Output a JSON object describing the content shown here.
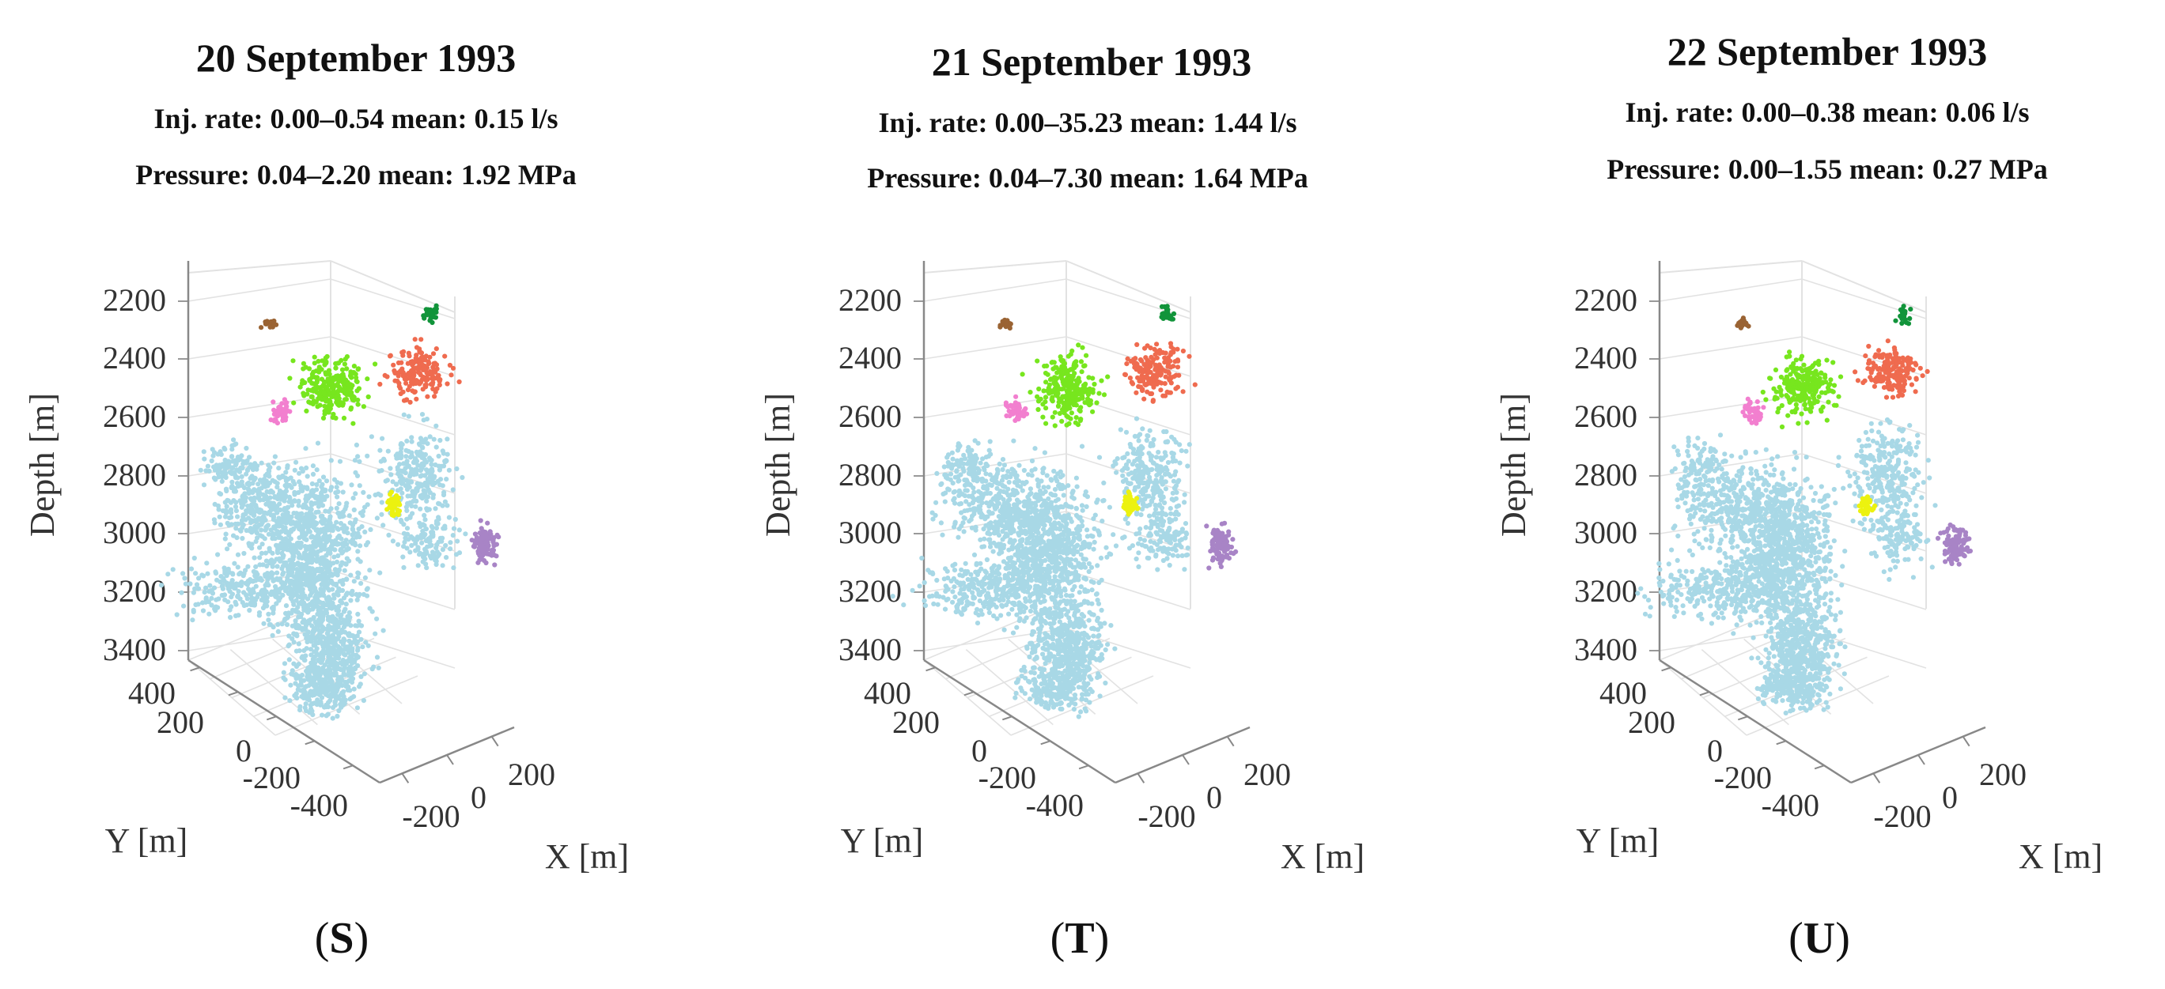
{
  "chart_data": [
    {
      "type": "scatter",
      "panel_label": "S",
      "title": "20 September 1993",
      "inj_line": "Inj. rate:  0.00–0.54  mean: 0.15 l/s",
      "pressure_line": "Pressure:  0.04–2.20  mean: 1.92 MPa",
      "zlabel": "Depth [m]",
      "ylabel": "Y [m]",
      "xlabel": "X [m]",
      "depth_ticks": [
        "2200",
        "2400",
        "2600",
        "2800",
        "3000",
        "3200",
        "3400"
      ],
      "y_ticks": [
        "400",
        "200",
        "0",
        "-200",
        "-400"
      ],
      "x_ticks": [
        "-200",
        "0",
        "200"
      ],
      "zlim": [
        2100,
        3450
      ],
      "seed": 11
    },
    {
      "type": "scatter",
      "panel_label": "T",
      "title": "21 September 1993",
      "inj_line": "Inj. rate:  0.00–35.23  mean: 1.44 l/s",
      "pressure_line": "Pressure:  0.04–7.30  mean: 1.64 MPa",
      "zlabel": "Depth [m]",
      "ylabel": "Y [m]",
      "xlabel": "X [m]",
      "depth_ticks": [
        "2200",
        "2400",
        "2600",
        "2800",
        "3000",
        "3200",
        "3400"
      ],
      "y_ticks": [
        "400",
        "200",
        "0",
        "-200",
        "-400"
      ],
      "x_ticks": [
        "-200",
        "0",
        "200"
      ],
      "zlim": [
        2100,
        3450
      ],
      "seed": 23
    },
    {
      "type": "scatter",
      "panel_label": "U",
      "title": "22 September 1993",
      "inj_line": "Inj. rate:  0.00–0.38  mean: 0.06 l/s",
      "pressure_line": "Pressure:  0.00–1.55  mean: 0.27 MPa",
      "zlabel": "Depth [m]",
      "ylabel": "Y [m]",
      "xlabel": "X [m]",
      "depth_ticks": [
        "2200",
        "2400",
        "2600",
        "2800",
        "3000",
        "3200",
        "3400"
      ],
      "y_ticks": [
        "400",
        "200",
        "0",
        "-200",
        "-400"
      ],
      "x_ticks": [
        "-200",
        "0",
        "200"
      ],
      "zlim": [
        2100,
        3450
      ],
      "seed": 37
    }
  ],
  "cluster_colors": {
    "main": "#a8d8e6",
    "green_light": "#77e61e",
    "red": "#ef6b4f",
    "green_dark": "#11943a",
    "brown": "#9a6333",
    "pink": "#f27fcf",
    "yellow": "#ecf20f",
    "purple": "#a884c6"
  }
}
